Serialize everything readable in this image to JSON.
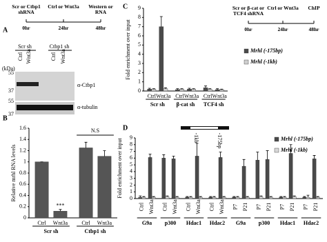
{
  "panel_labels": [
    "A",
    "B",
    "C",
    "D"
  ],
  "panel_a": {
    "timeline": [
      {
        "label": "Scr or Ctbp1 shRNA",
        "time": "0hr"
      },
      {
        "label": "Ctrl or Wnt3a",
        "time": "24hr"
      },
      {
        "label": "Western or RNA",
        "time": "48hr"
      }
    ],
    "group_labels": [
      "Scr sh",
      "Ctbp1 sh"
    ],
    "lanes": [
      "Ctrl",
      "Wnt3a",
      "Ctrl",
      "Wnt3a"
    ],
    "unit": "(kDa)",
    "blots": [
      {
        "markers": [
          "55",
          "37"
        ],
        "antibody": "α-Ctbp1"
      },
      {
        "markers": [
          "55",
          "37"
        ],
        "antibody": "α-tubulin"
      }
    ]
  },
  "panel_c_timeline": [
    {
      "label": "Scr or β-cat or TCF4 shRNA",
      "time": "0hr"
    },
    {
      "label": "Ctrl or Wnt3a",
      "time": "24hr"
    },
    {
      "label": "ChIP",
      "time": "48hr"
    }
  ],
  "panel_d_diagram_labels": [
    "-1kb",
    "-175bp"
  ],
  "chart_data": [
    {
      "type": "bar",
      "ylabel": "Relative mrhl RNA levels",
      "categories": [
        "Ctrl",
        "Wnt3a",
        "Ctrl",
        "Wnt3a"
      ],
      "group_labels": [
        "Scr sh",
        "Ctbp1 sh"
      ],
      "values": [
        1.0,
        0.12,
        1.25,
        1.1
      ],
      "errors": [
        0,
        0.03,
        0.1,
        0.1
      ],
      "value_annotations": [
        null,
        "***",
        null,
        null
      ],
      "bracket_label": "N.S",
      "color": "#555555",
      "ylim": [
        0,
        1.6
      ],
      "yticks": [
        0,
        0.2,
        0.4,
        0.6,
        0.8,
        1,
        1.2,
        1.4,
        1.6
      ]
    },
    {
      "type": "bar",
      "ylabel": "Fold enrichment over input",
      "categories": [
        "Ctrl",
        "Wnt3a",
        "Ctrl",
        "Wnt3a",
        "Ctrl",
        "Wnt3a"
      ],
      "group_labels": [
        "Scr sh",
        "β-cat sh",
        "TCF4 sh"
      ],
      "series": [
        {
          "name": "Mrhl (-175bp)",
          "color": "#4a4a4a",
          "values": [
            0.2,
            7.0,
            0.15,
            0.2,
            0.35,
            0.15
          ],
          "errors": [
            0.1,
            1.1,
            0.1,
            0.1,
            0.2,
            0.1
          ]
        },
        {
          "name": "Mrhl (-1kb)",
          "color": "#cfcfcf",
          "values": [
            0.2,
            0.25,
            0.2,
            0.2,
            0.2,
            0.15
          ],
          "errors": [
            0.05,
            0.1,
            0.05,
            0.05,
            0.05,
            0.05
          ]
        }
      ],
      "legend": "right",
      "ylim": [
        0,
        9
      ],
      "yticks": [
        0,
        1,
        2,
        3,
        4,
        5,
        6,
        7,
        8,
        9
      ]
    },
    {
      "type": "bar",
      "ylabel": "Fold enrichment over input",
      "categories": [
        "Ctrl",
        "Wnt3a",
        "Ctrl",
        "Wnt3a",
        "Ctrl",
        "Wnt3a",
        "Ctrl",
        "Wnt3a",
        "P7",
        "P21",
        "P7",
        "P21",
        "P7",
        "P21",
        "P7",
        "P21"
      ],
      "group_labels": [
        "G9a",
        "p300",
        "Hdac1",
        "Hdac2",
        "G9a",
        "p300",
        "Hdac1",
        "Hdac2"
      ],
      "x_label_rotation": -90,
      "series": [
        {
          "name": "Mrhl (-175bp)",
          "color": "#4a4a4a",
          "values": [
            0.2,
            6.1,
            6.0,
            5.9,
            0.2,
            6.3,
            0.2,
            6.1,
            0.2,
            4.8,
            5.7,
            5.8,
            0.2,
            6.7,
            0.2,
            5.9
          ],
          "errors": [
            0.2,
            0.5,
            0.5,
            0.4,
            0.1,
            1.9,
            0.1,
            0.8,
            0.1,
            1.0,
            1.2,
            1.3,
            0.1,
            1.3,
            0.1,
            0.5
          ]
        },
        {
          "name": "Mrhl (-1kb)",
          "color": "#d8d8d8",
          "values": [
            0.2,
            0.2,
            0.3,
            0.2,
            0.2,
            0.2,
            0.2,
            0.2,
            0.2,
            0.2,
            0.3,
            0.2,
            0.2,
            0.3,
            0.2,
            0.2
          ],
          "errors": [
            0.1,
            0.1,
            0.1,
            0.1,
            0.1,
            0.1,
            0.1,
            0.1,
            0.1,
            0.1,
            0.1,
            0.1,
            0.1,
            0.1,
            0.3,
            0.1
          ]
        }
      ],
      "legend": "upper right",
      "ylim": [
        0,
        9
      ],
      "yticks": [
        0,
        1,
        2,
        3,
        4,
        5,
        6,
        7,
        8,
        9
      ]
    }
  ]
}
